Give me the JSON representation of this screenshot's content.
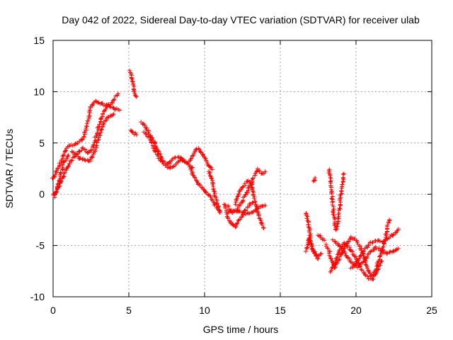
{
  "chart_data": {
    "type": "scatter",
    "title": "Day 042 of 2022, Sidereal Day-to-day VTEC variation (SDTVAR) for receiver ulab",
    "xlabel": "GPS time / hours",
    "ylabel": "SDTVAR / TECUs",
    "xlim": [
      0,
      25
    ],
    "ylim": [
      -10,
      15
    ],
    "xticks": [
      0,
      5,
      10,
      15,
      20,
      25
    ],
    "yticks": [
      -10,
      -5,
      0,
      5,
      10,
      15
    ],
    "grid": true,
    "marker": "+",
    "color": "#ff0000",
    "series": [
      {
        "name": "SDTVAR",
        "tracks": [
          [
            [
              0.0,
              1.5
            ],
            [
              0.3,
              2.5
            ],
            [
              0.6,
              3.5
            ],
            [
              0.9,
              4.5
            ],
            [
              1.2,
              4.8
            ],
            [
              1.6,
              5.0
            ],
            [
              2.0,
              5.5
            ],
            [
              2.3,
              7.0
            ],
            [
              2.5,
              8.5
            ],
            [
              2.8,
              9.0
            ],
            [
              3.2,
              8.8
            ],
            [
              3.6,
              8.6
            ],
            [
              4.0,
              8.4
            ],
            [
              4.4,
              8.2
            ]
          ],
          [
            [
              0.0,
              0.0
            ],
            [
              0.3,
              0.5
            ],
            [
              0.6,
              1.5
            ],
            [
              0.9,
              2.5
            ],
            [
              1.2,
              3.3
            ],
            [
              1.6,
              4.0
            ],
            [
              2.0,
              4.5
            ],
            [
              2.3,
              4.0
            ],
            [
              2.6,
              4.5
            ],
            [
              2.9,
              6.0
            ],
            [
              3.2,
              7.5
            ],
            [
              3.5,
              8.5
            ],
            [
              3.9,
              9.0
            ],
            [
              4.3,
              9.8
            ]
          ],
          [
            [
              1.2,
              4.2
            ],
            [
              1.6,
              3.6
            ],
            [
              2.0,
              3.4
            ],
            [
              2.4,
              3.2
            ],
            [
              2.7,
              4.0
            ],
            [
              3.0,
              5.5
            ],
            [
              3.3,
              6.8
            ],
            [
              3.6,
              7.5
            ],
            [
              4.0,
              7.8
            ]
          ],
          [
            [
              0.1,
              -0.3
            ],
            [
              0.3,
              0.8
            ],
            [
              0.5,
              2.0
            ],
            [
              0.7,
              3.0
            ],
            [
              1.0,
              3.8
            ]
          ],
          [
            [
              5.1,
              12.0
            ],
            [
              5.2,
              11.3
            ],
            [
              5.3,
              10.6
            ],
            [
              5.4,
              9.8
            ],
            [
              5.5,
              9.5
            ]
          ],
          [
            [
              5.1,
              6.3
            ],
            [
              5.3,
              6.0
            ],
            [
              5.5,
              5.8
            ]
          ],
          [
            [
              5.8,
              7.0
            ],
            [
              6.1,
              6.6
            ],
            [
              6.4,
              5.8
            ],
            [
              6.7,
              5.0
            ],
            [
              7.0,
              4.0
            ],
            [
              7.3,
              3.0
            ],
            [
              7.6,
              2.6
            ],
            [
              8.0,
              2.8
            ],
            [
              8.4,
              3.4
            ],
            [
              8.8,
              3.1
            ],
            [
              9.2,
              2.6
            ]
          ],
          [
            [
              6.0,
              6.0
            ],
            [
              6.3,
              5.6
            ],
            [
              6.6,
              4.7
            ],
            [
              6.9,
              3.7
            ],
            [
              7.2,
              3.1
            ],
            [
              7.6,
              3.0
            ],
            [
              8.0,
              3.5
            ],
            [
              8.4,
              3.6
            ],
            [
              8.8,
              3.1
            ]
          ],
          [
            [
              9.0,
              3.2
            ],
            [
              9.3,
              4.0
            ],
            [
              9.5,
              4.5
            ],
            [
              9.7,
              4.3
            ],
            [
              10.0,
              3.5
            ],
            [
              10.3,
              2.8
            ],
            [
              10.5,
              2.4
            ]
          ],
          [
            [
              9.0,
              2.6
            ],
            [
              9.3,
              1.8
            ],
            [
              9.6,
              1.0
            ],
            [
              9.9,
              0.5
            ],
            [
              10.2,
              0.0
            ],
            [
              10.5,
              -0.5
            ],
            [
              10.8,
              -1.3
            ],
            [
              11.0,
              -1.6
            ]
          ],
          [
            [
              10.3,
              2.3
            ],
            [
              10.5,
              1.2
            ],
            [
              10.7,
              -0.2
            ],
            [
              10.9,
              -1.2
            ],
            [
              11.0,
              -1.8
            ]
          ],
          [
            [
              11.3,
              -1.0
            ],
            [
              11.6,
              -2.5
            ],
            [
              11.8,
              -3.0
            ],
            [
              12.0,
              -3.2
            ],
            [
              12.4,
              -2.3
            ],
            [
              12.8,
              -1.3
            ],
            [
              13.2,
              -0.8
            ]
          ],
          [
            [
              11.5,
              -1.2
            ],
            [
              11.8,
              -1.8
            ],
            [
              12.1,
              -1.6
            ],
            [
              12.5,
              -0.6
            ],
            [
              12.9,
              0.5
            ],
            [
              13.2,
              1.5
            ],
            [
              13.5,
              2.4
            ],
            [
              13.8,
              2.0
            ],
            [
              14.0,
              2.2
            ]
          ],
          [
            [
              11.6,
              -1.7
            ],
            [
              12.0,
              -1.5
            ],
            [
              12.5,
              -1.8
            ],
            [
              13.0,
              -1.9
            ],
            [
              13.4,
              -1.5
            ],
            [
              13.7,
              -1.2
            ],
            [
              14.0,
              -1.1
            ]
          ],
          [
            [
              12.0,
              -1.0
            ],
            [
              12.4,
              0.5
            ],
            [
              12.8,
              1.3
            ],
            [
              13.1,
              1.0
            ],
            [
              13.3,
              -0.5
            ],
            [
              13.6,
              -2.3
            ],
            [
              13.9,
              -3.3
            ]
          ],
          [
            [
              17.2,
              1.2
            ],
            [
              17.3,
              1.6
            ]
          ],
          [
            [
              16.7,
              -1.8
            ],
            [
              16.8,
              -2.5
            ],
            [
              16.9,
              -3.3
            ],
            [
              17.0,
              -4.3
            ],
            [
              17.1,
              -5.3
            ],
            [
              17.4,
              -6.0
            ],
            [
              17.7,
              -5.8
            ]
          ],
          [
            [
              16.7,
              -5.5
            ],
            [
              16.8,
              -5.0
            ],
            [
              16.9,
              -4.2
            ],
            [
              17.0,
              -4.8
            ],
            [
              17.2,
              -5.6
            ],
            [
              17.5,
              -6.3
            ]
          ],
          [
            [
              17.5,
              -4.0
            ],
            [
              17.7,
              -4.2
            ],
            [
              17.9,
              -4.5
            ]
          ],
          [
            [
              18.2,
              2.5
            ],
            [
              18.3,
              1.5
            ],
            [
              18.4,
              0.0
            ],
            [
              18.5,
              -1.5
            ],
            [
              18.6,
              -3.0
            ],
            [
              18.7,
              -3.5
            ],
            [
              18.8,
              -3.0
            ],
            [
              18.9,
              -1.5
            ],
            [
              19.0,
              0.0
            ],
            [
              19.1,
              1.0
            ],
            [
              19.2,
              2.0
            ]
          ],
          [
            [
              18.0,
              -5.0
            ],
            [
              18.2,
              -5.5
            ],
            [
              18.4,
              -6.5
            ],
            [
              18.6,
              -7.2
            ],
            [
              18.8,
              -6.5
            ],
            [
              19.0,
              -6.0
            ],
            [
              19.3,
              -5.0
            ],
            [
              19.7,
              -4.2
            ],
            [
              20.0,
              -4.5
            ],
            [
              20.4,
              -5.5
            ],
            [
              20.7,
              -7.0
            ],
            [
              21.0,
              -8.0
            ],
            [
              21.3,
              -7.5
            ],
            [
              21.6,
              -6.0
            ],
            [
              21.9,
              -4.5
            ],
            [
              22.1,
              -3.0
            ],
            [
              22.2,
              -2.5
            ]
          ],
          [
            [
              18.3,
              -7.5
            ],
            [
              18.6,
              -6.6
            ],
            [
              18.9,
              -5.5
            ],
            [
              19.2,
              -4.8
            ],
            [
              19.6,
              -5.3
            ],
            [
              20.0,
              -6.3
            ],
            [
              20.4,
              -7.4
            ],
            [
              20.8,
              -8.2
            ],
            [
              21.1,
              -8.3
            ],
            [
              21.4,
              -7.5
            ],
            [
              21.7,
              -6.5
            ]
          ],
          [
            [
              18.5,
              -4.5
            ],
            [
              18.9,
              -5.0
            ],
            [
              19.3,
              -5.8
            ],
            [
              19.7,
              -6.7
            ],
            [
              20.1,
              -7.1
            ],
            [
              20.5,
              -6.5
            ],
            [
              20.9,
              -5.7
            ],
            [
              21.3,
              -5.2
            ],
            [
              21.7,
              -5.5
            ],
            [
              22.1,
              -5.8
            ],
            [
              22.5,
              -5.5
            ],
            [
              22.8,
              -5.3
            ]
          ],
          [
            [
              19.7,
              -7.2
            ],
            [
              20.1,
              -6.5
            ],
            [
              20.5,
              -5.5
            ],
            [
              20.9,
              -4.8
            ],
            [
              21.3,
              -4.5
            ],
            [
              21.7,
              -4.6
            ],
            [
              22.1,
              -4.3
            ],
            [
              22.5,
              -3.8
            ],
            [
              22.8,
              -3.4
            ]
          ]
        ]
      }
    ]
  }
}
